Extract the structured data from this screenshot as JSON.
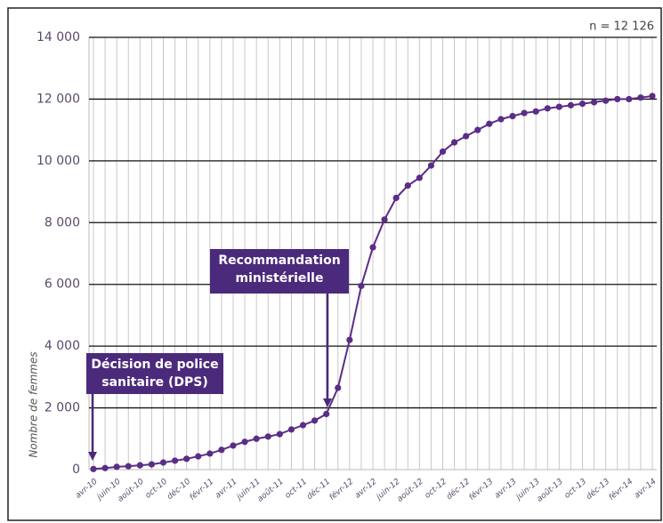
{
  "chart_data": {
    "type": "line",
    "note": "n = 12 126",
    "y_label": "Nombre de femmes",
    "annotations": [
      {
        "lines": [
          "Décision de police",
          "sanitaire (DPS)"
        ]
      },
      {
        "lines": [
          "Recommandation",
          "ministérielle"
        ]
      }
    ],
    "categories": [
      "avr-10",
      null,
      "juin-10",
      null,
      "août-10",
      null,
      "oct-10",
      null,
      "déc-10",
      null,
      "févr-11",
      null,
      "avr-11",
      null,
      "juin-11",
      null,
      "août-11",
      null,
      "oct-11",
      null,
      "déc-11",
      null,
      "févr-12",
      null,
      "avr-12",
      null,
      "juin-12",
      null,
      "août-12",
      null,
      "oct-12",
      null,
      "déc-12",
      null,
      "févr-13",
      null,
      "avr-13",
      null,
      "juin-13",
      null,
      "août-13",
      null,
      "oct-13",
      null,
      "déc-13",
      null,
      "févr-14",
      null,
      "avr-14"
    ],
    "series": [
      {
        "name": "Nombre de femmes",
        "color": "#5b2d86",
        "values": [
          20,
          50,
          90,
          110,
          140,
          170,
          230,
          290,
          350,
          430,
          520,
          640,
          780,
          900,
          1000,
          1070,
          1150,
          1300,
          1440,
          1590,
          1800,
          2650,
          4200,
          5950,
          7200,
          8100,
          8800,
          9200,
          9450,
          9850,
          10300,
          10600,
          10800,
          11000,
          11200,
          11350,
          11450,
          11550,
          11600,
          11700,
          11750,
          11800,
          11850,
          11900,
          11950,
          12000,
          12000,
          12050,
          12100
        ]
      }
    ],
    "ylim": [
      0,
      14000
    ],
    "yticks": [
      0,
      {
        "value": 2000,
        "label": "2 000"
      },
      {
        "value": 4000,
        "label": "4 000"
      },
      {
        "value": 6000,
        "label": "6 000"
      },
      {
        "value": 8000,
        "label": "8 000"
      },
      {
        "value": 10000,
        "label": "10 000"
      },
      {
        "value": 12000,
        "label": "12 000"
      },
      {
        "value": 14000,
        "label": "14 000"
      }
    ],
    "grid": true
  }
}
